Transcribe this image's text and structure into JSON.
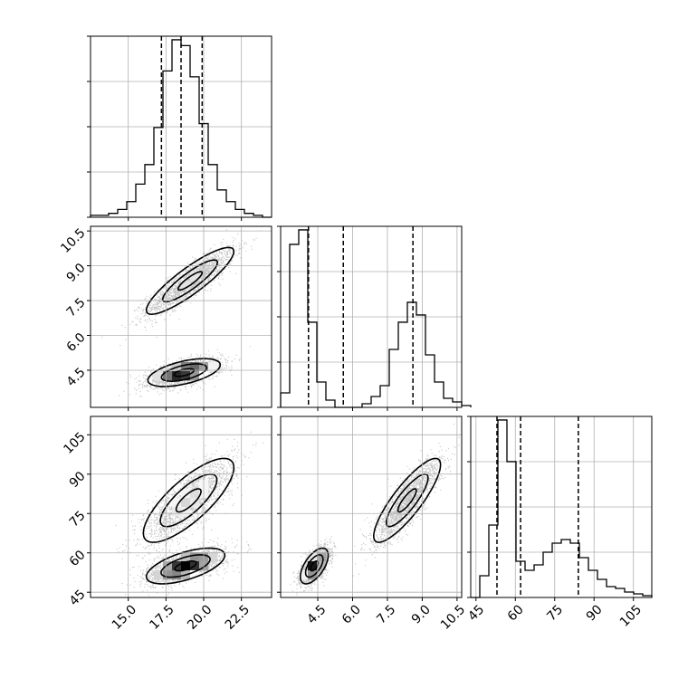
{
  "chart_data": {
    "type": "corner",
    "parameters": [
      {
        "id": "p0",
        "range": [
          12.5,
          24.5
        ],
        "tick_values": [
          15.0,
          17.5,
          20.0,
          22.5
        ],
        "tick_labels": [
          "15.0",
          "17.5",
          "20.0",
          "22.5"
        ]
      },
      {
        "id": "p1",
        "range": [
          2.9,
          10.7
        ],
        "tick_values": [
          4.5,
          6.0,
          7.5,
          9.0,
          10.5
        ],
        "tick_labels": [
          "4.5",
          "6.0",
          "7.5",
          "9.0",
          "10.5"
        ]
      },
      {
        "id": "p2",
        "range": [
          43,
          112
        ],
        "tick_values": [
          45,
          60,
          75,
          90,
          105
        ],
        "tick_labels": [
          "45",
          "60",
          "75",
          "90",
          "105"
        ]
      }
    ],
    "quantiles": {
      "p0": [
        17.2,
        18.5,
        19.9
      ],
      "p1": [
        4.1,
        5.6,
        8.6
      ],
      "p2": [
        53,
        62,
        84
      ]
    },
    "histograms": {
      "p0": {
        "bin_start": 12.5,
        "bin_width": 0.6,
        "counts": [
          1,
          1,
          2,
          4,
          8,
          17,
          27,
          46,
          75,
          91,
          88,
          72,
          48,
          27,
          14,
          8,
          4,
          2,
          1,
          0
        ]
      },
      "p1": {
        "bin_start": 2.9,
        "bin_width": 0.39,
        "counts": [
          8,
          90,
          98,
          47,
          14,
          4,
          0,
          0,
          0,
          2,
          6,
          12,
          32,
          47,
          58,
          51,
          29,
          14,
          5,
          3,
          1
        ]
      },
      "p2": {
        "bin_start": 43,
        "bin_width": 3.45,
        "counts": [
          0,
          12,
          40,
          98,
          75,
          20,
          15,
          18,
          25,
          30,
          32,
          30,
          22,
          15,
          10,
          6,
          5,
          3,
          2,
          1
        ]
      }
    },
    "pairs": [
      {
        "x": "p0",
        "y": "p1",
        "clusters": [
          {
            "cx": 19.1,
            "cy": 8.35,
            "sx": 1.45,
            "sy": 0.72,
            "rho": 0.88,
            "weight": 0.5
          },
          {
            "cx": 18.7,
            "cy": 4.4,
            "sx": 1.2,
            "sy": 0.3,
            "rho": 0.55,
            "weight": 0.5
          }
        ]
      },
      {
        "x": "p0",
        "y": "p2",
        "clusters": [
          {
            "cx": 19.0,
            "cy": 80,
            "sx": 1.5,
            "sy": 8.0,
            "rho": 0.78,
            "weight": 0.5
          },
          {
            "cx": 18.8,
            "cy": 55,
            "sx": 1.3,
            "sy": 3.4,
            "rho": 0.6,
            "weight": 0.5
          }
        ]
      },
      {
        "x": "p1",
        "y": "p2",
        "clusters": [
          {
            "cx": 8.35,
            "cy": 80,
            "sx": 0.72,
            "sy": 8.0,
            "rho": 0.85,
            "weight": 0.5
          },
          {
            "cx": 4.35,
            "cy": 55,
            "sx": 0.3,
            "sy": 3.4,
            "rho": 0.6,
            "weight": 0.5
          }
        ]
      }
    ],
    "grid": true
  }
}
